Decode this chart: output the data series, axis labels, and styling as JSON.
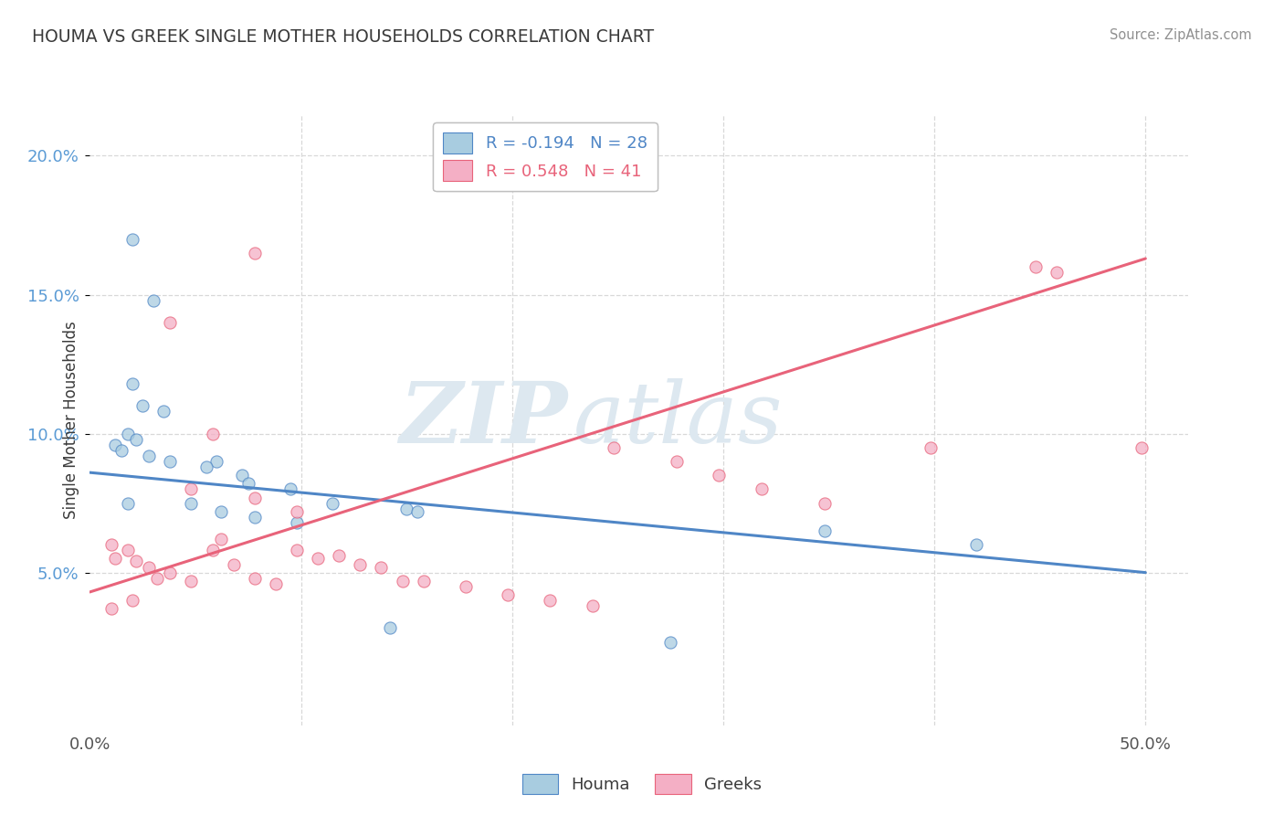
{
  "title": "HOUMA VS GREEK SINGLE MOTHER HOUSEHOLDS CORRELATION CHART",
  "source": "Source: ZipAtlas.com",
  "ylabel": "Single Mother Households",
  "watermark_zip": "ZIP",
  "watermark_atlas": "atlas",
  "houma_R": -0.194,
  "houma_N": 28,
  "greeks_R": 0.548,
  "greeks_N": 41,
  "xlim": [
    0.0,
    0.52
  ],
  "ylim": [
    -0.005,
    0.215
  ],
  "yticks": [
    0.05,
    0.1,
    0.15,
    0.2
  ],
  "xticks": [
    0.0,
    0.1,
    0.2,
    0.3,
    0.4,
    0.5
  ],
  "houma_scatter_x": [
    0.02,
    0.03,
    0.02,
    0.025,
    0.035,
    0.018,
    0.022,
    0.012,
    0.015,
    0.028,
    0.038,
    0.06,
    0.055,
    0.072,
    0.075,
    0.095,
    0.018,
    0.048,
    0.115,
    0.15,
    0.062,
    0.155,
    0.078,
    0.348,
    0.098,
    0.42,
    0.142,
    0.275
  ],
  "houma_scatter_y": [
    0.17,
    0.148,
    0.118,
    0.11,
    0.108,
    0.1,
    0.098,
    0.096,
    0.094,
    0.092,
    0.09,
    0.09,
    0.088,
    0.085,
    0.082,
    0.08,
    0.075,
    0.075,
    0.075,
    0.073,
    0.072,
    0.072,
    0.07,
    0.065,
    0.068,
    0.06,
    0.03,
    0.025
  ],
  "greeks_scatter_x": [
    0.01,
    0.018,
    0.012,
    0.022,
    0.028,
    0.038,
    0.032,
    0.048,
    0.058,
    0.062,
    0.068,
    0.078,
    0.088,
    0.098,
    0.108,
    0.038,
    0.118,
    0.128,
    0.138,
    0.148,
    0.158,
    0.178,
    0.198,
    0.218,
    0.238,
    0.048,
    0.058,
    0.248,
    0.078,
    0.098,
    0.278,
    0.298,
    0.318,
    0.348,
    0.01,
    0.02,
    0.078,
    0.458,
    0.498,
    0.398,
    0.448
  ],
  "greeks_scatter_y": [
    0.06,
    0.058,
    0.055,
    0.054,
    0.052,
    0.05,
    0.048,
    0.047,
    0.058,
    0.062,
    0.053,
    0.048,
    0.046,
    0.058,
    0.055,
    0.14,
    0.056,
    0.053,
    0.052,
    0.047,
    0.047,
    0.045,
    0.042,
    0.04,
    0.038,
    0.08,
    0.1,
    0.095,
    0.077,
    0.072,
    0.09,
    0.085,
    0.08,
    0.075,
    0.037,
    0.04,
    0.165,
    0.158,
    0.095,
    0.095,
    0.16
  ],
  "houma_line_x": [
    0.0,
    0.5
  ],
  "houma_line_y": [
    0.086,
    0.05
  ],
  "greeks_line_x": [
    0.0,
    0.5
  ],
  "greeks_line_y": [
    0.043,
    0.163
  ],
  "houma_scatter_color": "#a8cce0",
  "greeks_scatter_color": "#f4afc5",
  "houma_line_color": "#4f86c6",
  "greeks_line_color": "#e8637a",
  "background_color": "#ffffff",
  "grid_color": "#d8d8d8",
  "title_color": "#3a3a3a",
  "source_color": "#909090",
  "ytick_color": "#5b9bd5",
  "xtick_color": "#555555",
  "scatter_alpha": 0.75,
  "scatter_size": 90,
  "scatter_linewidth": 0.8
}
